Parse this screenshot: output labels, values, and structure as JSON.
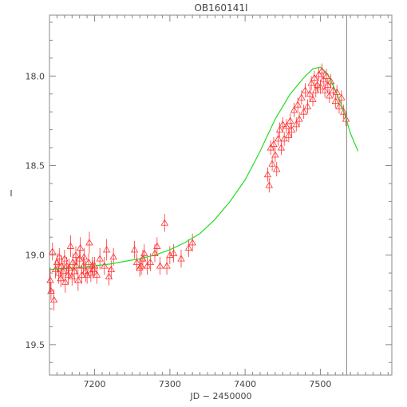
{
  "chart_data": {
    "type": "scatter",
    "title": "OB160141I",
    "xlabel": "JD − 2450000",
    "ylabel": "I",
    "xlim": [
      7140,
      7595
    ],
    "ylim": [
      19.67,
      17.66
    ],
    "y_inverted": true,
    "x_ticks": [
      7200,
      7300,
      7400,
      7500
    ],
    "y_ticks": [
      18.0,
      18.5,
      19.0,
      19.5
    ],
    "y_tick_labels": [
      "18.0",
      "18.5",
      "19.0",
      "19.5"
    ],
    "grid": false,
    "legend": "none",
    "colors": {
      "points": "#ff3030",
      "model": "#22dd22",
      "marker_line": "#888888",
      "axes": "#888888"
    },
    "vertical_line_x": 7535,
    "series": [
      {
        "kind": "observations",
        "x": [
          7141,
          7142,
          7144,
          7146,
          7148,
          7150,
          7152,
          7153,
          7155,
          7156,
          7158,
          7160,
          7161,
          7163,
          7165,
          7166,
          7168,
          7170,
          7171,
          7173,
          7175,
          7176,
          7178,
          7180,
          7181,
          7183,
          7185,
          7186,
          7188,
          7190,
          7192,
          7193,
          7195,
          7197,
          7198,
          7200,
          7203,
          7207,
          7213,
          7216,
          7219,
          7222,
          7225,
          7253,
          7256,
          7260,
          7262,
          7264,
          7266,
          7270,
          7274,
          7280,
          7283,
          7287,
          7293,
          7296,
          7300,
          7305,
          7315,
          7325,
          7330,
          7430,
          7432,
          7434,
          7436,
          7438,
          7440,
          7442,
          7444,
          7446,
          7448,
          7450,
          7452,
          7455,
          7458,
          7460,
          7462,
          7465,
          7468,
          7470,
          7472,
          7475,
          7478,
          7480,
          7483,
          7486,
          7488,
          7490,
          7492,
          7494,
          7496,
          7498,
          7500,
          7502,
          7504,
          7506,
          7508,
          7510,
          7512,
          7514,
          7517,
          7520,
          7522,
          7525,
          7528,
          7531,
          7534
        ],
        "y": [
          19.14,
          19.2,
          18.98,
          19.25,
          19.08,
          19.04,
          19.1,
          19.01,
          19.13,
          19.06,
          19.09,
          19.02,
          19.15,
          19.06,
          19.11,
          19.07,
          18.95,
          19.12,
          19.04,
          19.09,
          19.0,
          19.06,
          19.14,
          19.02,
          18.96,
          19.11,
          19.06,
          19.01,
          19.09,
          19.11,
          19.04,
          18.93,
          19.1,
          19.06,
          19.08,
          19.06,
          19.11,
          19.02,
          19.06,
          18.97,
          19.12,
          19.08,
          19.01,
          18.97,
          19.04,
          19.07,
          19.06,
          19.02,
          18.99,
          19.06,
          19.04,
          18.99,
          18.95,
          19.06,
          18.82,
          19.06,
          19.0,
          18.99,
          19.02,
          18.96,
          18.93,
          18.55,
          18.61,
          18.4,
          18.49,
          18.38,
          18.44,
          18.52,
          18.35,
          18.3,
          18.4,
          18.27,
          18.35,
          18.28,
          18.33,
          18.25,
          18.3,
          18.19,
          18.27,
          18.16,
          18.24,
          18.12,
          18.2,
          18.08,
          18.17,
          18.1,
          18.04,
          18.13,
          18.01,
          18.08,
          18.05,
          17.99,
          18.06,
          17.97,
          18.02,
          18.08,
          18.0,
          18.05,
          18.11,
          18.03,
          18.08,
          18.14,
          18.09,
          18.17,
          18.12,
          18.2,
          18.24
        ],
        "err": [
          0.07,
          0.05,
          0.05,
          0.06,
          0.05,
          0.05,
          0.06,
          0.05,
          0.05,
          0.06,
          0.05,
          0.05,
          0.06,
          0.05,
          0.05,
          0.05,
          0.06,
          0.05,
          0.05,
          0.06,
          0.05,
          0.05,
          0.06,
          0.05,
          0.06,
          0.05,
          0.05,
          0.05,
          0.06,
          0.05,
          0.05,
          0.06,
          0.05,
          0.05,
          0.05,
          0.05,
          0.05,
          0.06,
          0.05,
          0.06,
          0.05,
          0.05,
          0.05,
          0.05,
          0.05,
          0.05,
          0.05,
          0.05,
          0.05,
          0.05,
          0.05,
          0.05,
          0.05,
          0.05,
          0.05,
          0.05,
          0.05,
          0.05,
          0.05,
          0.05,
          0.05,
          0.04,
          0.04,
          0.04,
          0.04,
          0.04,
          0.04,
          0.04,
          0.04,
          0.04,
          0.04,
          0.04,
          0.04,
          0.04,
          0.04,
          0.04,
          0.04,
          0.04,
          0.04,
          0.04,
          0.04,
          0.04,
          0.04,
          0.04,
          0.04,
          0.04,
          0.04,
          0.04,
          0.04,
          0.04,
          0.04,
          0.04,
          0.04,
          0.04,
          0.04,
          0.04,
          0.04,
          0.04,
          0.04,
          0.04,
          0.04,
          0.04,
          0.04,
          0.04,
          0.04,
          0.04,
          0.04
        ]
      },
      {
        "kind": "model",
        "x": [
          7140,
          7160,
          7180,
          7200,
          7220,
          7240,
          7260,
          7280,
          7300,
          7320,
          7340,
          7360,
          7380,
          7400,
          7410,
          7420,
          7430,
          7440,
          7450,
          7460,
          7470,
          7480,
          7490,
          7500,
          7510,
          7520,
          7530,
          7540,
          7550
        ],
        "y": [
          19.08,
          19.075,
          19.07,
          19.06,
          19.05,
          19.035,
          19.02,
          19.0,
          18.97,
          18.93,
          18.88,
          18.8,
          18.7,
          18.58,
          18.5,
          18.42,
          18.33,
          18.24,
          18.17,
          18.1,
          18.05,
          18.0,
          17.96,
          17.95,
          17.99,
          18.08,
          18.18,
          18.32,
          18.42
        ]
      }
    ]
  }
}
